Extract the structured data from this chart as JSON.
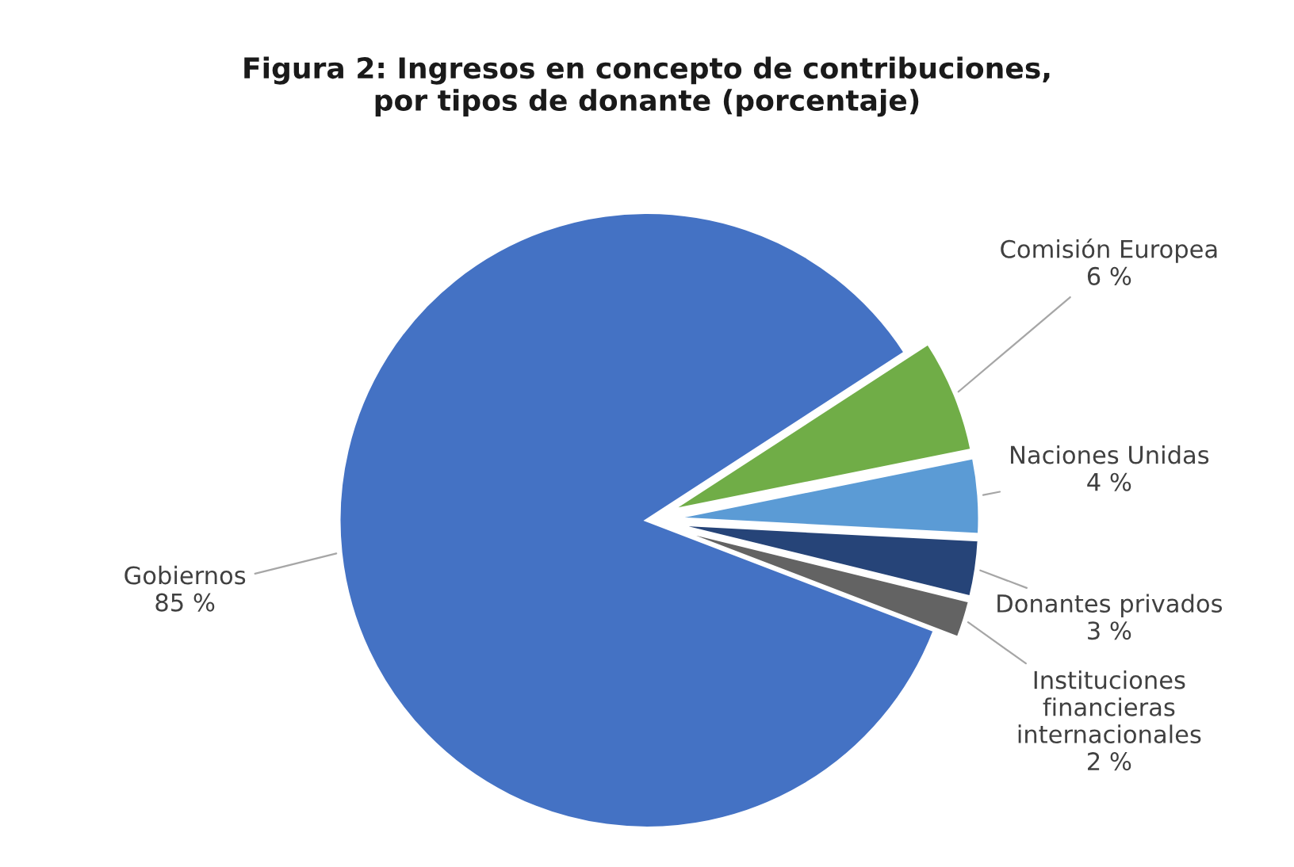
{
  "chart_data": {
    "type": "pie",
    "title": "Figura 2: Ingresos en concepto de contribuciones,\npor tipos de donante (porcentaje)",
    "categories": [
      "Gobiernos",
      "Comisión Europea",
      "Naciones Unidas",
      "Donantes privados",
      "Instituciones\nfinancieras\ninternacionales"
    ],
    "values": [
      85,
      6,
      4,
      3,
      2
    ],
    "value_labels": [
      "85 %",
      "6 %",
      "4 %",
      "3 %",
      "2 %"
    ],
    "colors": [
      "#4472c4",
      "#70ad47",
      "#5b9bd5",
      "#264478",
      "#636363"
    ],
    "legend": false
  }
}
